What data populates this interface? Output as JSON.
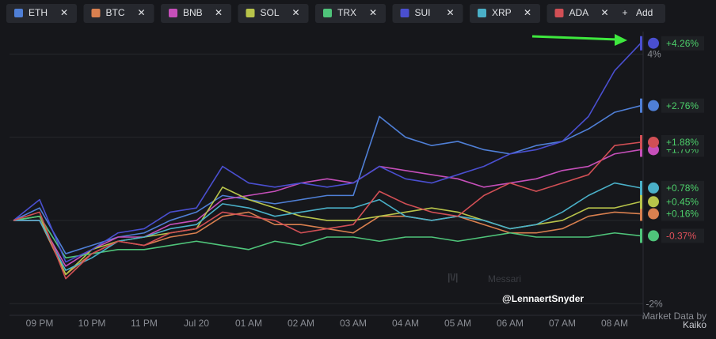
{
  "chart_data": {
    "type": "line",
    "categories": [
      null,
      "09 PM",
      null,
      "10 PM",
      null,
      "11 PM",
      null,
      "Jul 20",
      null,
      "01 AM",
      null,
      "02 AM",
      null,
      "03 AM",
      null,
      "04 AM",
      null,
      "05 AM",
      null,
      "06 AM",
      null,
      "07 AM",
      null,
      "08 AM",
      null
    ],
    "ylim": [
      -2.3,
      5.3
    ],
    "yticks": [
      {
        "value": -2,
        "label": "-2%"
      },
      {
        "value": 4,
        "label": "4%"
      }
    ],
    "gridlines": [
      -2,
      0,
      2,
      4
    ],
    "series": [
      {
        "name": "ETH",
        "color": "#4f7fd6",
        "values": [
          0,
          0.3,
          -0.8,
          -0.6,
          -0.4,
          -0.3,
          0,
          0.2,
          0.6,
          0.5,
          0.4,
          0.5,
          0.6,
          0.6,
          2.5,
          2.0,
          1.8,
          1.9,
          1.7,
          1.6,
          1.8,
          1.9,
          2.2,
          2.6,
          2.76
        ],
        "value_labels": [
          null,
          null,
          null,
          null,
          null,
          null,
          null,
          null,
          null,
          null,
          null,
          null,
          null,
          null,
          null,
          null,
          null,
          null,
          null,
          null,
          null,
          null,
          null,
          null,
          "+2.76%"
        ]
      },
      {
        "name": "BTC",
        "color": "#d9804f",
        "values": [
          0,
          0,
          -1.3,
          -0.8,
          -0.5,
          -0.6,
          -0.4,
          -0.3,
          0.1,
          0.2,
          -0.1,
          -0.1,
          -0.2,
          -0.3,
          0.1,
          0.1,
          0,
          0.1,
          -0.1,
          -0.3,
          -0.3,
          -0.2,
          0.1,
          0.2,
          0.16
        ],
        "value_labels": [
          null,
          null,
          null,
          null,
          null,
          null,
          null,
          null,
          null,
          null,
          null,
          null,
          null,
          null,
          null,
          null,
          null,
          null,
          null,
          null,
          null,
          null,
          null,
          null,
          "+0.16%"
        ]
      },
      {
        "name": "BNB",
        "color": "#c64fba",
        "values": [
          0,
          0,
          -1.1,
          -0.7,
          -0.4,
          -0.4,
          -0.1,
          0,
          0.5,
          0.6,
          0.7,
          0.9,
          1.0,
          0.9,
          1.3,
          1.2,
          1.1,
          1.0,
          0.8,
          0.9,
          1.0,
          1.2,
          1.3,
          1.6,
          1.7
        ],
        "value_labels": [
          null,
          null,
          null,
          null,
          null,
          null,
          null,
          null,
          null,
          null,
          null,
          null,
          null,
          null,
          null,
          null,
          null,
          null,
          null,
          null,
          null,
          null,
          null,
          null,
          "+1.70%"
        ]
      },
      {
        "name": "SOL",
        "color": "#b8c44a",
        "values": [
          0,
          0.1,
          -1.3,
          -0.7,
          -0.5,
          -0.4,
          -0.3,
          -0.2,
          0.8,
          0.5,
          0.3,
          0.1,
          0,
          0,
          0.1,
          0.2,
          0.3,
          0.2,
          0,
          -0.2,
          -0.1,
          0,
          0.3,
          0.3,
          0.45
        ],
        "value_labels": [
          null,
          null,
          null,
          null,
          null,
          null,
          null,
          null,
          null,
          null,
          null,
          null,
          null,
          null,
          null,
          null,
          null,
          null,
          null,
          null,
          null,
          null,
          null,
          null,
          "+0.45%"
        ]
      },
      {
        "name": "TRX",
        "color": "#4fc47a",
        "values": [
          0,
          0.1,
          -0.9,
          -0.8,
          -0.7,
          -0.7,
          -0.6,
          -0.5,
          -0.6,
          -0.7,
          -0.5,
          -0.6,
          -0.4,
          -0.4,
          -0.5,
          -0.4,
          -0.4,
          -0.5,
          -0.4,
          -0.3,
          -0.4,
          -0.4,
          -0.4,
          -0.3,
          -0.37
        ],
        "value_labels": [
          null,
          null,
          null,
          null,
          null,
          null,
          null,
          null,
          null,
          null,
          null,
          null,
          null,
          null,
          null,
          null,
          null,
          null,
          null,
          null,
          null,
          null,
          null,
          null,
          "-0.37%"
        ]
      },
      {
        "name": "SUI",
        "color": "#4a4fd0",
        "values": [
          0,
          0.5,
          -1.0,
          -0.7,
          -0.3,
          -0.2,
          0.2,
          0.3,
          1.3,
          0.9,
          0.8,
          0.9,
          0.8,
          0.9,
          1.3,
          1.0,
          0.9,
          1.1,
          1.3,
          1.6,
          1.7,
          1.9,
          2.5,
          3.6,
          4.26
        ],
        "value_labels": [
          null,
          null,
          null,
          null,
          null,
          null,
          null,
          null,
          null,
          null,
          null,
          null,
          null,
          null,
          null,
          null,
          null,
          null,
          null,
          null,
          null,
          null,
          null,
          null,
          "+4.26%"
        ]
      },
      {
        "name": "XRP",
        "color": "#4ab0c8",
        "values": [
          0,
          0,
          -1.2,
          -0.9,
          -0.5,
          -0.4,
          -0.2,
          -0.1,
          0.4,
          0.3,
          0.1,
          0.2,
          0.3,
          0.3,
          0.5,
          0.1,
          0,
          0.1,
          0,
          -0.2,
          -0.1,
          0.2,
          0.6,
          0.9,
          0.78
        ],
        "value_labels": [
          null,
          null,
          null,
          null,
          null,
          null,
          null,
          null,
          null,
          null,
          null,
          null,
          null,
          null,
          null,
          null,
          null,
          null,
          null,
          null,
          null,
          null,
          null,
          null,
          "+0.78%"
        ]
      },
      {
        "name": "ADA",
        "color": "#d14f55",
        "values": [
          0,
          0.2,
          -1.4,
          -0.8,
          -0.5,
          -0.6,
          -0.3,
          -0.2,
          0.2,
          0.1,
          0,
          -0.3,
          -0.2,
          -0.1,
          0.7,
          0.4,
          0.2,
          0.1,
          0.6,
          0.9,
          0.7,
          0.9,
          1.1,
          1.8,
          1.88
        ],
        "value_labels": [
          null,
          null,
          null,
          null,
          null,
          null,
          null,
          null,
          null,
          null,
          null,
          null,
          null,
          null,
          null,
          null,
          null,
          null,
          null,
          null,
          null,
          null,
          null,
          null,
          "+1.88%"
        ]
      }
    ]
  },
  "add_button": "Add",
  "watermark": "Messari",
  "handle": "@LennaertSnyder",
  "credit": "Market Data by",
  "provider": "Kaiko"
}
